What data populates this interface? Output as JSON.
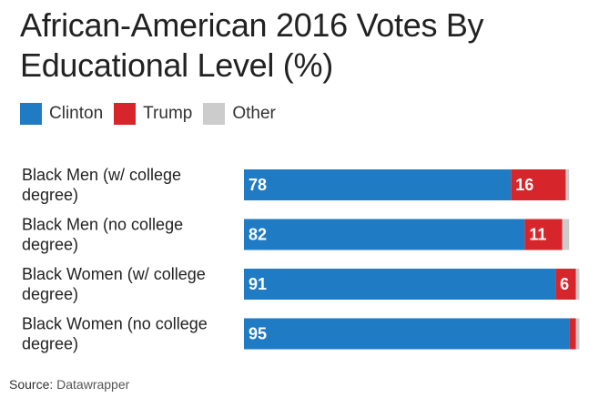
{
  "chart_data": {
    "type": "bar",
    "orientation": "horizontal",
    "stacked": true,
    "title_line1": "African-American 2016 Votes By",
    "title_line2": "Educational Level (%)",
    "categories": [
      [
        "Black Men (w/ college",
        "degree)"
      ],
      [
        "Black Men (no college",
        "degree)"
      ],
      [
        "Black Women (w/ college",
        "degree)"
      ],
      [
        "Black Women (no college",
        "degree)"
      ]
    ],
    "series": [
      {
        "name": "Clinton",
        "color": "#1f7bc4",
        "values": [
          78,
          82,
          91,
          95
        ],
        "labels": [
          "78",
          "82",
          "91",
          "95"
        ]
      },
      {
        "name": "Trump",
        "color": "#d6262b",
        "values": [
          16,
          11,
          6,
          2
        ],
        "labels": [
          "16",
          "11",
          "6",
          ""
        ]
      },
      {
        "name": "Other",
        "color": "#cccccc",
        "values": [
          1,
          2,
          1,
          1
        ],
        "labels": [
          "",
          "",
          "",
          ""
        ]
      }
    ],
    "xlim": [
      0,
      100
    ],
    "legend_position": "top-left",
    "grid": false
  },
  "source": {
    "prefix": "Source:",
    "name": "Datawrapper"
  }
}
